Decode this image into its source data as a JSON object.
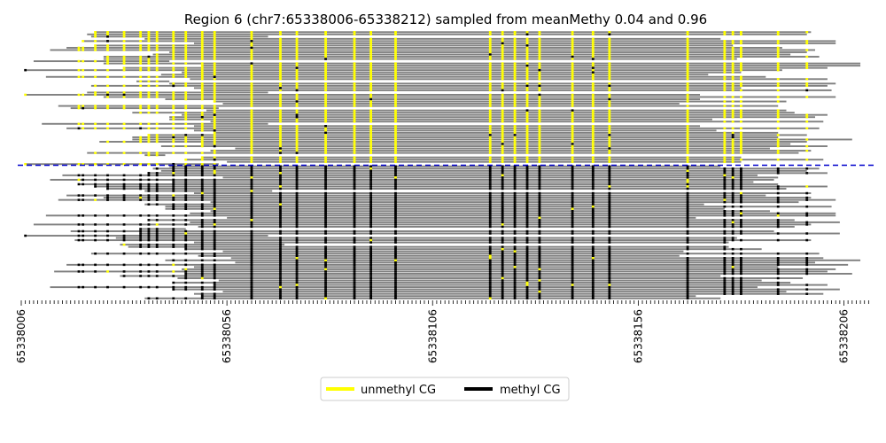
{
  "chart_data": {
    "type": "heatmap",
    "title": "Region 6 (chr7:65338006-65338212) sampled from meanMethy 0.04 and 0.96",
    "x_range": [
      65338006,
      65338212
    ],
    "x_tick_labels": [
      "65338006",
      "65338056",
      "65338106",
      "65338156",
      "65338206"
    ],
    "n_reads": 120,
    "cpg_positions": [
      65338007,
      65338020,
      65338021,
      65338024,
      65338027,
      65338031,
      65338035,
      65338037,
      65338039,
      65338043,
      65338046,
      65338050,
      65338053,
      65338062,
      65338069,
      65338073,
      65338080,
      65338087,
      65338091,
      65338097,
      65338120,
      65338123,
      65338126,
      65338129,
      65338132,
      65338140,
      65338145,
      65338149,
      65338168,
      65338177,
      65338179,
      65338181,
      65338190,
      65338197
    ],
    "groups": [
      {
        "label": "unmethyl",
        "reads": 60,
        "meanMethy": 0.04
      },
      {
        "label": "methyl",
        "reads": 60,
        "meanMethy": 0.96
      }
    ],
    "grid": false,
    "legend": {
      "position": "bottom-center",
      "entries": [
        {
          "label": "unmethyl CG",
          "color": "#ffff00"
        },
        {
          "label": "methyl CG",
          "color": "#000000"
        }
      ]
    },
    "colors": {
      "read": "#808080",
      "unmethyl": "#ffff00",
      "methyl": "#000000",
      "divider": "#0000cc"
    }
  }
}
